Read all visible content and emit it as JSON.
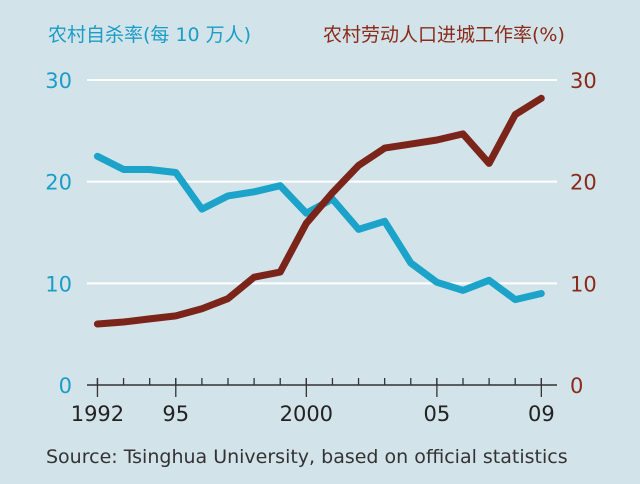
{
  "chart_data": {
    "type": "line",
    "legend": {
      "left_series_label": "农村自杀率(每 10 万人)",
      "right_series_label": "农村劳动人口进城工作率(%)"
    },
    "x": [
      1992,
      1993,
      1994,
      1995,
      1996,
      1997,
      1998,
      1999,
      2000,
      2001,
      2002,
      2003,
      2004,
      2005,
      2006,
      2007,
      2008,
      2009
    ],
    "x_tick_labels": [
      {
        "x": 1992,
        "label": "1992"
      },
      {
        "x": 1995,
        "label": "95"
      },
      {
        "x": 2000,
        "label": "2000"
      },
      {
        "x": 2005,
        "label": "05"
      },
      {
        "x": 2009,
        "label": "09"
      }
    ],
    "x_range": [
      1991.6,
      2009.6
    ],
    "series": [
      {
        "name": "农村自杀率(每 10 万人)",
        "axis": "left",
        "color": "#1ba3c9",
        "values": [
          22.5,
          21.2,
          21.2,
          20.9,
          17.3,
          18.6,
          19.0,
          19.6,
          16.9,
          18.3,
          15.3,
          16.1,
          12.0,
          10.1,
          9.3,
          10.3,
          8.4,
          9.0
        ]
      },
      {
        "name": "农村劳动人口进城工作率(%)",
        "axis": "right",
        "color": "#7b2419",
        "values": [
          6.0,
          6.2,
          6.5,
          6.8,
          7.5,
          8.5,
          10.6,
          11.1,
          15.9,
          18.9,
          21.6,
          23.3,
          23.7,
          24.1,
          24.7,
          21.8,
          26.6,
          28.2
        ]
      }
    ],
    "y_left": {
      "range": [
        0,
        30
      ],
      "ticks": [
        "0",
        "10",
        "20",
        "30"
      ],
      "color": "#1a9dc6"
    },
    "y_right": {
      "range": [
        0,
        30
      ],
      "ticks": [
        "0",
        "10",
        "20",
        "30"
      ],
      "color": "#8a2b1a"
    },
    "grid": true,
    "source": "Source: Tsinghua University, based on official statistics"
  }
}
